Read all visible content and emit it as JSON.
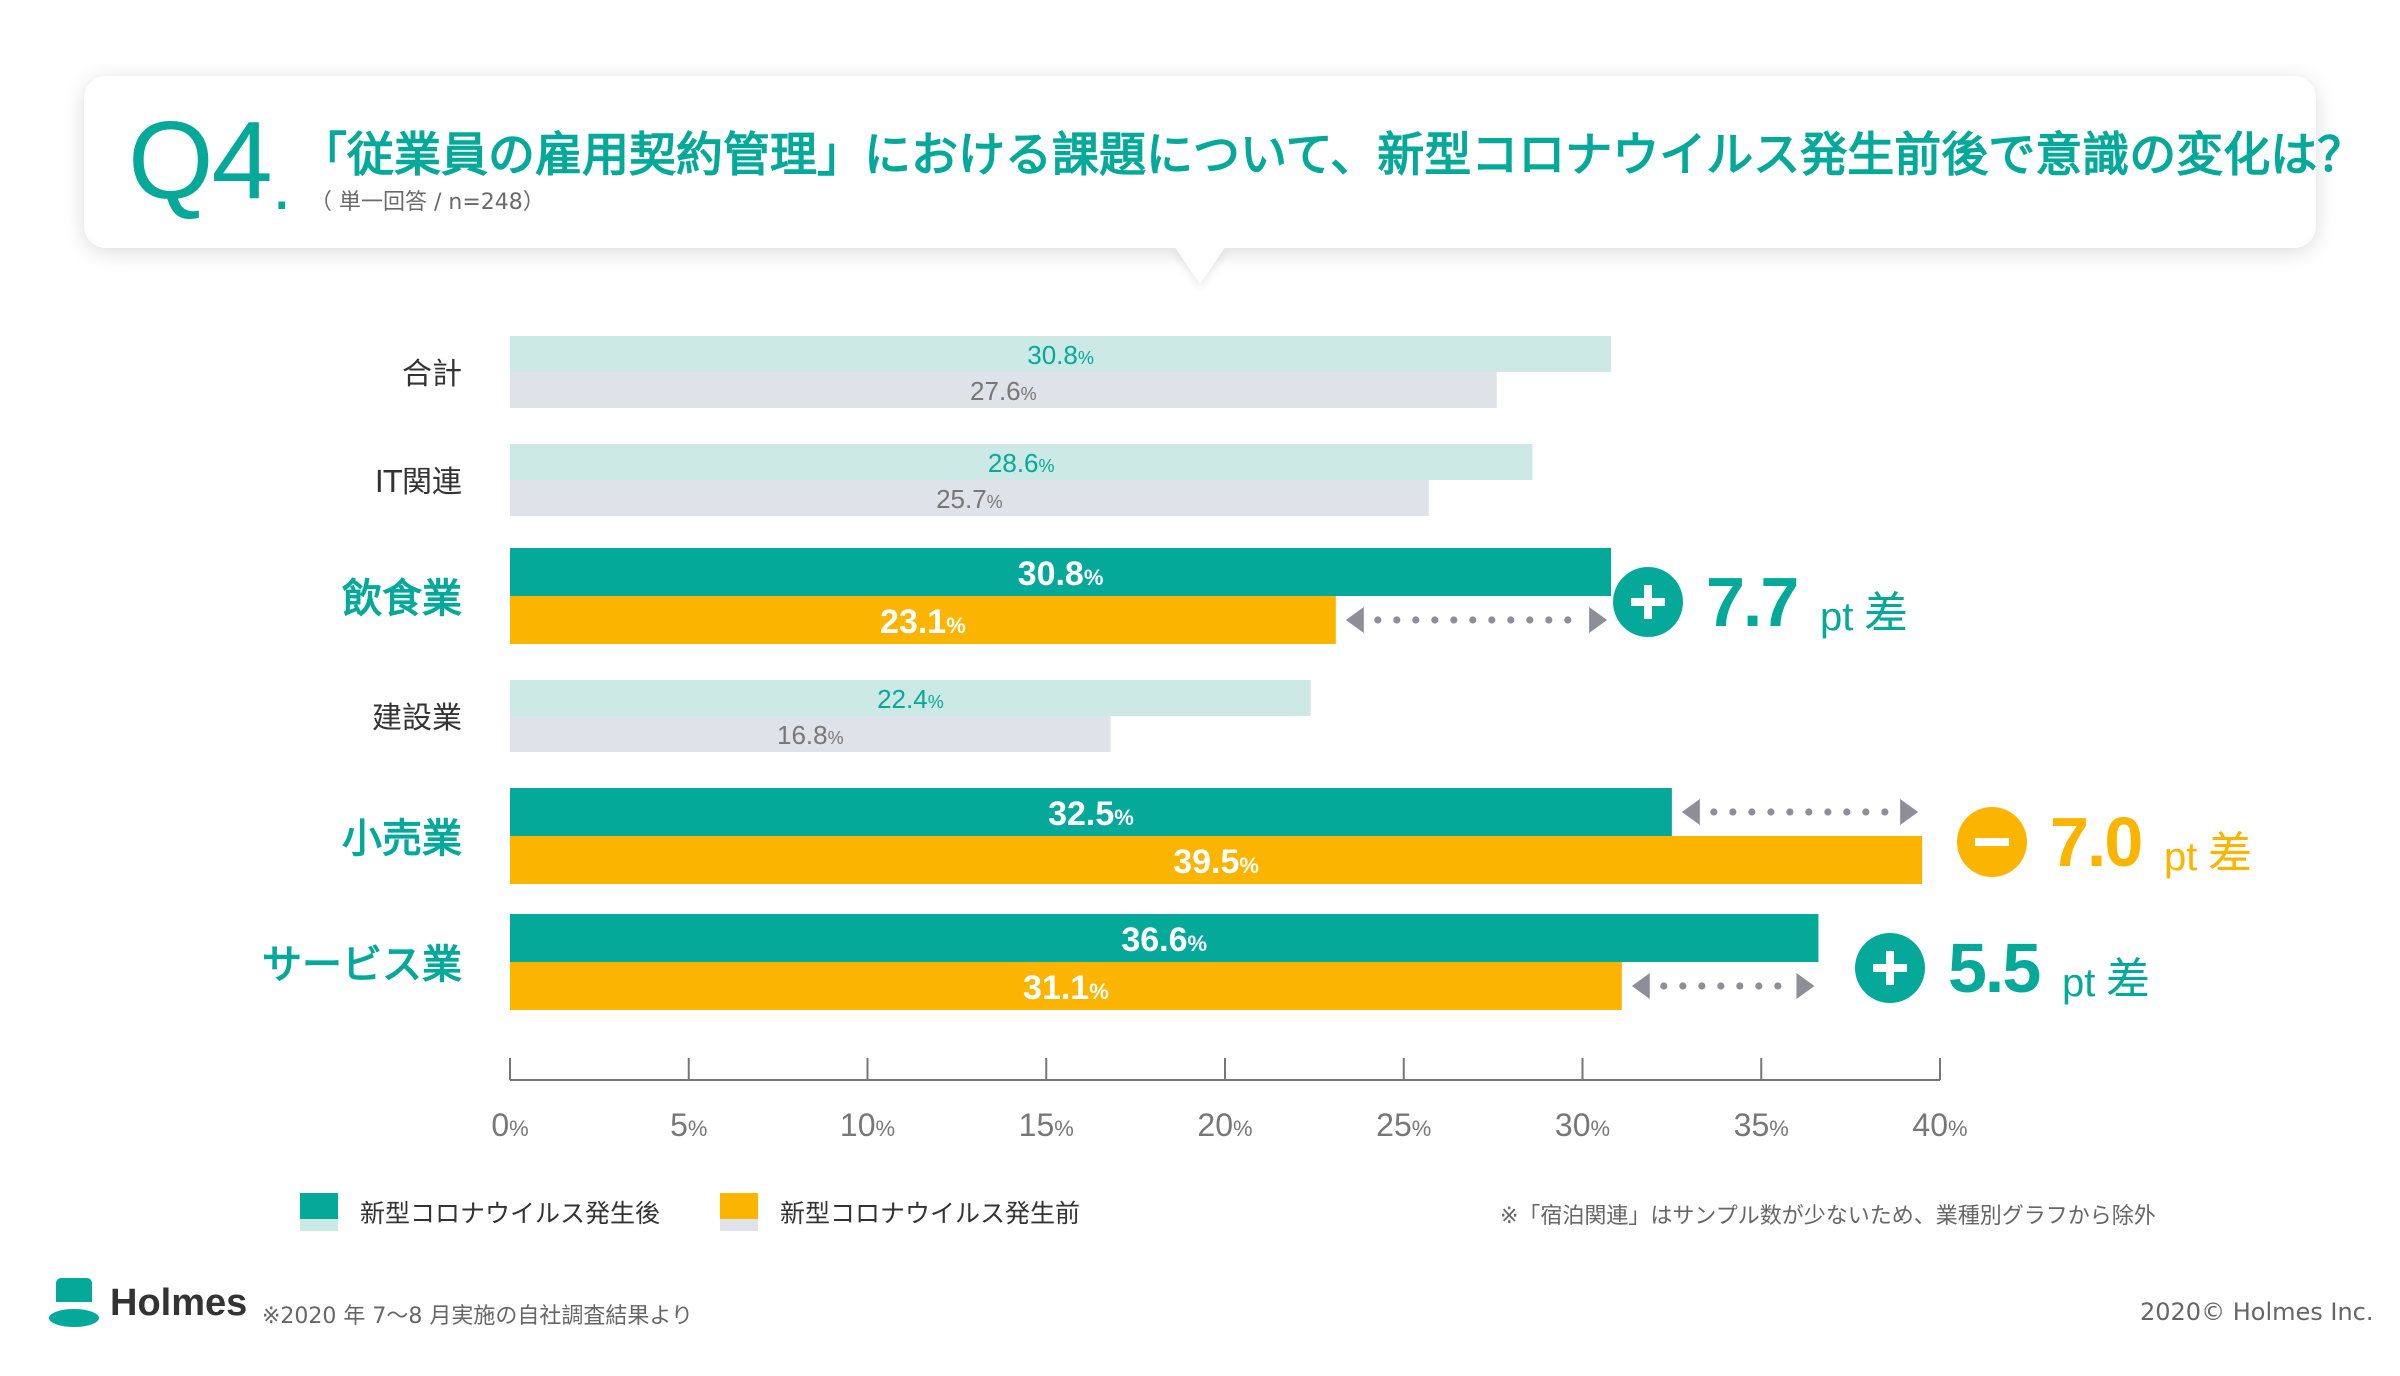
{
  "header": {
    "q_number": "Q4",
    "q_dot": ".",
    "title": "「従業員の雇用契約管理」における課題について、新型コロナウイルス発生前後で意識の変化は？",
    "subtitle": "（ 単一回答 / n=248）"
  },
  "colors": {
    "accent": "#05a99a",
    "after": "#05a99a",
    "before": "#fbb400",
    "after_light": "#cde9e5",
    "before_light": "#dfe2e8",
    "arrow": "#8e8e98"
  },
  "chart_data": {
    "type": "bar",
    "orientation": "horizontal",
    "categories": [
      "合計",
      "IT関連",
      "飲食業",
      "建設業",
      "小売業",
      "サービス業"
    ],
    "highlighted": [
      false,
      false,
      true,
      false,
      true,
      true
    ],
    "series": [
      {
        "name": "新型コロナウイルス発生後",
        "values": [
          30.8,
          28.6,
          30.8,
          22.4,
          32.5,
          36.6
        ]
      },
      {
        "name": "新型コロナウイルス発生前",
        "values": [
          27.6,
          25.7,
          23.1,
          16.8,
          39.5,
          31.1
        ]
      }
    ],
    "value_suffix": "%",
    "xlim": [
      0,
      40
    ],
    "xticks": [
      0,
      5,
      10,
      15,
      20,
      25,
      30,
      35,
      40
    ],
    "tick_suffix": "%",
    "legend": "bottom-left",
    "differences": [
      {
        "category": "飲食業",
        "sign": "+",
        "value": "7.7",
        "unit": "pt",
        "suffix": "差",
        "color": "#05a99a"
      },
      {
        "category": "小売業",
        "sign": "−",
        "value": "7.0",
        "unit": "pt",
        "suffix": "差",
        "color": "#fbb400"
      },
      {
        "category": "サービス業",
        "sign": "+",
        "value": "5.5",
        "unit": "pt",
        "suffix": "差",
        "color": "#05a99a"
      }
    ]
  },
  "legend": {
    "after_label": "新型コロナウイルス発生後",
    "before_label": "新型コロナウイルス発生前"
  },
  "note": "※「宿泊関連」はサンプル数が少ないため、業種別グラフから除外",
  "footer": {
    "logo_text": "Holmes",
    "source": "※2020 年 7〜8 月実施の自社調査結果より",
    "copyright": "2020© Holmes Inc."
  }
}
